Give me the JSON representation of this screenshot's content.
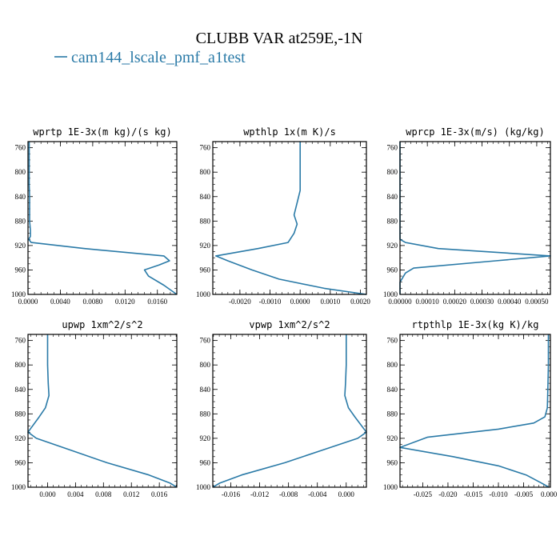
{
  "figure": {
    "title": "CLUBB VAR at259E,-1N",
    "legend_label": "cam144_lscale_pmf_a1test",
    "series_color": "#2a7aa7"
  },
  "chart_data": [
    {
      "type": "line",
      "title": "wprtp  1E-3x(m kg)/(s kg)",
      "xlim": [
        0.0,
        0.0184
      ],
      "ylim": [
        1000,
        750
      ],
      "xticks": [
        0.0,
        0.004,
        0.008,
        0.012,
        0.016
      ],
      "xtick_labels": [
        "0.0000",
        "0.0040",
        "0.0080",
        "0.0120",
        "0.0160"
      ],
      "yticks": [
        760,
        800,
        840,
        880,
        920,
        960,
        1000
      ],
      "ytick_labels": [
        "760",
        "800",
        "840",
        "880",
        "920",
        "960",
        "1000"
      ],
      "series": [
        {
          "x": [
            0.00015,
            0.00015,
            0.00015,
            0.00015,
            0.0002,
            0.0002,
            0.0002,
            0.0003,
            0.0003,
            0.0001,
            0.0004,
            0.007,
            0.0168,
            0.0175,
            0.0162,
            0.0144,
            0.0149,
            0.0168,
            0.0184
          ],
          "y": [
            750,
            780,
            800,
            820,
            840,
            860,
            880,
            895,
            905,
            910,
            915,
            925,
            937,
            945,
            952,
            960,
            970,
            985,
            1000
          ]
        }
      ]
    },
    {
      "type": "line",
      "title": "wpthlp  1x(m K)/s",
      "xlim": [
        -0.0029,
        0.0022
      ],
      "ylim": [
        1000,
        750
      ],
      "xticks": [
        -0.002,
        -0.001,
        0.0,
        0.001,
        0.002
      ],
      "xtick_labels": [
        "-0.0020",
        "-0.0010",
        "0.0000",
        "0.0010",
        "0.0020"
      ],
      "yticks": [
        760,
        800,
        840,
        880,
        920,
        960,
        1000
      ],
      "ytick_labels": [
        "760",
        "800",
        "840",
        "880",
        "920",
        "960",
        "1000"
      ],
      "series": [
        {
          "x": [
            0.0,
            0.0,
            0.0,
            -0.0001,
            -0.0002,
            -0.0001,
            -0.0002,
            -0.0004,
            -0.0014,
            -0.0028,
            -0.0024,
            -0.0016,
            -0.0007,
            0.0008,
            0.0022
          ],
          "y": [
            750,
            800,
            830,
            850,
            870,
            885,
            900,
            915,
            925,
            937,
            945,
            960,
            975,
            990,
            1000
          ]
        }
      ]
    },
    {
      "type": "line",
      "title": "wprcp  1E-3x(m/s) (kg/kg)",
      "xlim": [
        0.0,
        0.00055
      ],
      "ylim": [
        1000,
        750
      ],
      "xticks": [
        0.0,
        0.0001,
        0.0002,
        0.0003,
        0.0004,
        0.0005
      ],
      "xtick_labels": [
        "0.00000",
        "0.00010",
        "0.00020",
        "0.00030",
        "0.00040",
        "0.00050"
      ],
      "yticks": [
        760,
        800,
        840,
        880,
        920,
        960,
        1000
      ],
      "ytick_labels": [
        "760",
        "800",
        "840",
        "880",
        "920",
        "960",
        "1000"
      ],
      "series": [
        {
          "x": [
            0.0,
            0.0,
            0.0,
            0.0,
            0.0,
            0.0,
            2e-05,
            0.00014,
            0.00055,
            0.00035,
            5e-05,
            2e-05,
            0.0,
            0.0
          ],
          "y": [
            750,
            800,
            850,
            880,
            900,
            910,
            915,
            925,
            937,
            945,
            957,
            965,
            980,
            1000
          ]
        }
      ]
    },
    {
      "type": "line",
      "title": "upwp  1xm^2/s^2",
      "xlim": [
        -0.0028,
        0.0185
      ],
      "ylim": [
        1000,
        750
      ],
      "xticks": [
        0.0,
        0.004,
        0.008,
        0.012,
        0.016
      ],
      "xtick_labels": [
        "0.000",
        "0.004",
        "0.008",
        "0.012",
        "0.016"
      ],
      "yticks": [
        760,
        800,
        840,
        880,
        920,
        960,
        1000
      ],
      "ytick_labels": [
        "760",
        "800",
        "840",
        "880",
        "920",
        "960",
        "1000"
      ],
      "series": [
        {
          "x": [
            0.0,
            0.0,
            0.0001,
            0.0002,
            -0.0003,
            -0.0012,
            -0.0028,
            -0.0016,
            0.0035,
            0.0085,
            0.0145,
            0.0175,
            0.0185
          ],
          "y": [
            750,
            800,
            830,
            850,
            870,
            885,
            910,
            920,
            940,
            960,
            980,
            993,
            1000
          ]
        }
      ]
    },
    {
      "type": "line",
      "title": "vpwp  1xm^2/s^2",
      "xlim": [
        -0.0185,
        0.0028
      ],
      "ylim": [
        1000,
        750
      ],
      "xticks": [
        -0.016,
        -0.012,
        -0.008,
        -0.004,
        0.0
      ],
      "xtick_labels": [
        "-0.016",
        "-0.012",
        "-0.008",
        "-0.004",
        "0.000"
      ],
      "yticks": [
        760,
        800,
        840,
        880,
        920,
        960,
        1000
      ],
      "ytick_labels": [
        "760",
        "800",
        "840",
        "880",
        "920",
        "960",
        "1000"
      ],
      "series": [
        {
          "x": [
            0.0,
            0.0,
            -0.0001,
            -0.0002,
            0.0003,
            0.0012,
            0.0028,
            0.0016,
            -0.0035,
            -0.0085,
            -0.0145,
            -0.0175,
            -0.0185
          ],
          "y": [
            750,
            800,
            830,
            850,
            870,
            885,
            910,
            920,
            940,
            960,
            980,
            993,
            1000
          ]
        }
      ]
    },
    {
      "type": "line",
      "title": "rtpthlp  1E-3x(kg K)/kg",
      "xlim": [
        -0.0295,
        0.0003
      ],
      "ylim": [
        1000,
        750
      ],
      "xticks": [
        -0.025,
        -0.02,
        -0.015,
        -0.01,
        -0.005,
        0.0
      ],
      "xtick_labels": [
        "-0.025",
        "-0.020",
        "-0.015",
        "-0.010",
        "-0.005",
        "0.000"
      ],
      "yticks": [
        760,
        800,
        840,
        880,
        920,
        960,
        1000
      ],
      "ytick_labels": [
        "760",
        "800",
        "840",
        "880",
        "920",
        "960",
        "1000"
      ],
      "series": [
        {
          "x": [
            -0.0001,
            -0.0001,
            -0.0002,
            -0.0003,
            -0.0008,
            -0.003,
            -0.01,
            -0.024,
            -0.0295,
            -0.019,
            -0.01,
            -0.0045,
            -0.0015,
            0.0
          ],
          "y": [
            750,
            800,
            840,
            870,
            885,
            895,
            905,
            918,
            935,
            950,
            965,
            980,
            993,
            1000
          ]
        }
      ]
    }
  ]
}
